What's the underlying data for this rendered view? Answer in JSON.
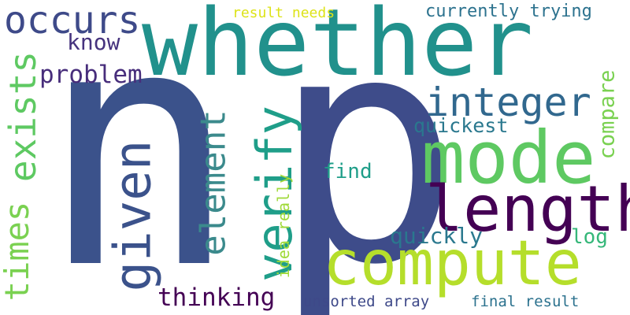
{
  "words": [
    {
      "text": "n",
      "color": "#3b528b"
    },
    {
      "text": "p",
      "color": "#3e4c8a"
    },
    {
      "text": "whether",
      "color": "#21918c"
    },
    {
      "text": "occurs",
      "color": "#3e4a89"
    },
    {
      "text": "result needs",
      "color": "#dde318"
    },
    {
      "text": "currently trying",
      "color": "#2c728e"
    },
    {
      "text": "know",
      "color": "#46337e"
    },
    {
      "text": "problem",
      "color": "#472d7b"
    },
    {
      "text": "exists",
      "color": "#5ec962"
    },
    {
      "text": "integer",
      "color": "#31688e"
    },
    {
      "text": "compare",
      "color": "#7ad151"
    },
    {
      "text": "quickest",
      "color": "#2a788e"
    },
    {
      "text": "mode",
      "color": "#5ec962"
    },
    {
      "text": "element",
      "color": "#3b8a8c"
    },
    {
      "text": "verify",
      "color": "#1f9e89"
    },
    {
      "text": "given",
      "color": "#3b528b"
    },
    {
      "text": "times",
      "color": "#7ad151"
    },
    {
      "text": "find",
      "color": "#1f9e89"
    },
    {
      "text": "length",
      "color": "#440154"
    },
    {
      "text": "idea really",
      "color": "#a0da39"
    },
    {
      "text": "quickly",
      "color": "#2a788e"
    },
    {
      "text": "log",
      "color": "#35b779"
    },
    {
      "text": "compute",
      "color": "#b5de2b"
    },
    {
      "text": "thinking",
      "color": "#440154"
    },
    {
      "text": "unsorted array",
      "color": "#3e4989"
    },
    {
      "text": "final result",
      "color": "#2c728e"
    }
  ]
}
